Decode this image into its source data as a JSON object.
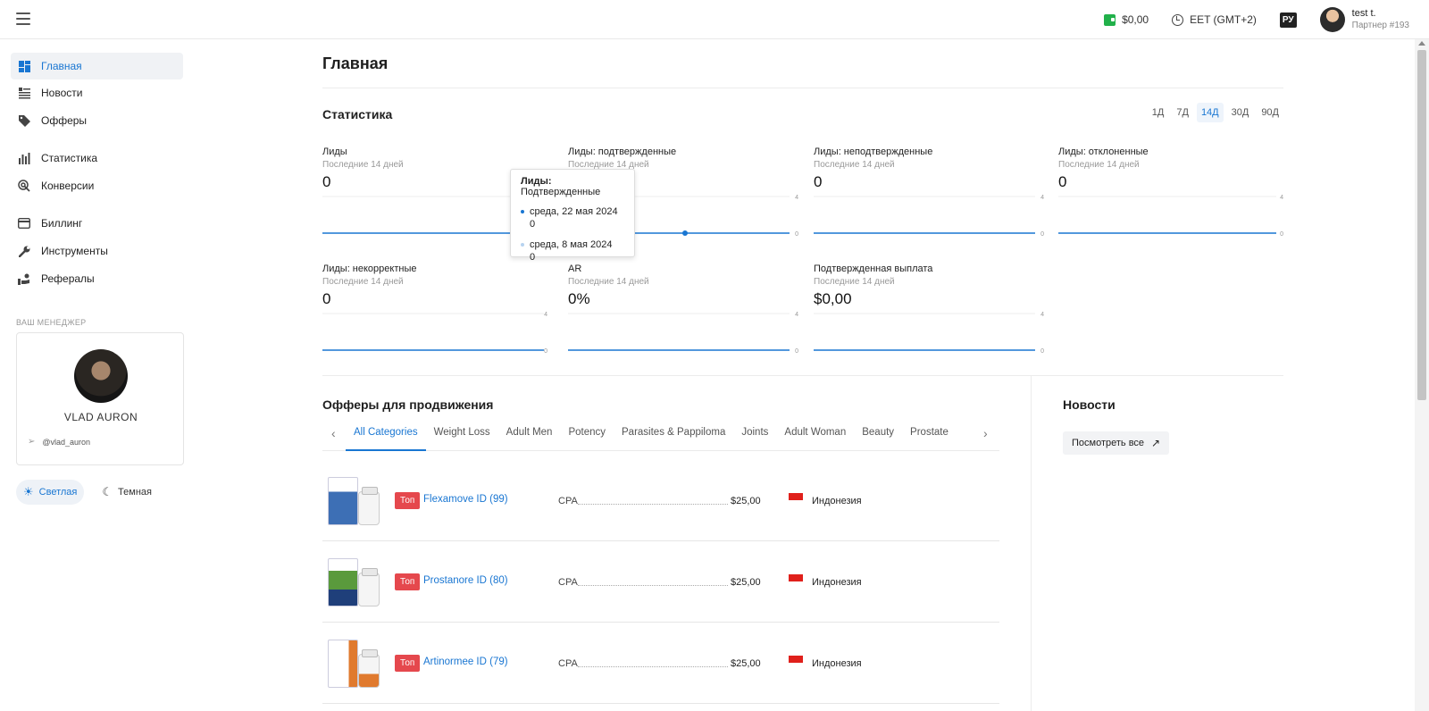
{
  "topbar": {
    "balance": "$0,00",
    "timezone": "EET (GMT+2)",
    "lang": "РУ",
    "user_name": "test t.",
    "user_sub": "Партнер #193"
  },
  "sidebar": {
    "items": [
      {
        "label": "Главная",
        "icon": "dashboard-icon"
      },
      {
        "label": "Новости",
        "icon": "news-icon"
      },
      {
        "label": "Офферы",
        "icon": "tag-icon"
      },
      {
        "label": "Статистика",
        "icon": "bar-chart-icon"
      },
      {
        "label": "Конверсии",
        "icon": "conversion-icon"
      },
      {
        "label": "Биллинг",
        "icon": "credit-card-icon"
      },
      {
        "label": "Инструменты",
        "icon": "wrench-icon"
      },
      {
        "label": "Рефералы",
        "icon": "referral-icon"
      }
    ],
    "manager_label": "ВАШ МЕНЕДЖЕР",
    "manager_name": "VLAD AURON",
    "manager_telegram": "@vlad_auron",
    "theme_light": "Светлая",
    "theme_dark": "Темная"
  },
  "main": {
    "title": "Главная",
    "stats_title": "Статистика",
    "periods": [
      "1Д",
      "7Д",
      "14Д",
      "30Д",
      "90Д"
    ],
    "active_period": "14Д",
    "cards": [
      {
        "title": "Лиды",
        "sub": "Последние 14 дней",
        "value": "0"
      },
      {
        "title": "Лиды: подтвержденные",
        "sub": "Последние 14 дней",
        "value": "0"
      },
      {
        "title": "Лиды: неподтвержденные",
        "sub": "Последние 14 дней",
        "value": "0"
      },
      {
        "title": "Лиды: отклоненные",
        "sub": "Последние 14 дней",
        "value": "0"
      },
      {
        "title": "Лиды: некорректные",
        "sub": "Последние 14 дней",
        "value": "0"
      },
      {
        "title": "AR",
        "sub": "Последние 14 дней",
        "value": "0%"
      },
      {
        "title": "Подтвержденная выплата",
        "sub": "Последние 14 дней",
        "value": "$0,00"
      }
    ],
    "axis_max": "4",
    "axis_min": "0",
    "tooltip": {
      "title_bold": "Лиды:",
      "title_rest": " Подтвержденные",
      "rows": [
        {
          "date": "среда, 22 мая 2024",
          "value": "0",
          "color": "#1976d2"
        },
        {
          "date": "среда, 8 мая 2024",
          "value": "0",
          "color": "#b7d3f0"
        }
      ]
    }
  },
  "offers": {
    "title": "Офферы для продвижения",
    "categories": [
      "All Categories",
      "Weight Loss",
      "Adult Men",
      "Potency",
      "Parasites & Pappiloma",
      "Joints",
      "Adult Woman",
      "Beauty",
      "Prostate"
    ],
    "rows": [
      {
        "badge": "Топ",
        "name": "Flexamove ID (99)",
        "type": "CPA",
        "price": "$25,00",
        "country": "Индонезия",
        "box_color": "#3d6fb5"
      },
      {
        "badge": "Топ",
        "name": "Prostanore ID (80)",
        "type": "CPA",
        "price": "$25,00",
        "country": "Индонезия",
        "box_color": "#5a9a3c"
      },
      {
        "badge": "Топ",
        "name": "Artinormee ID (79)",
        "type": "CPA",
        "price": "$25,00",
        "country": "Индонезия",
        "box_color": "#e07a2e"
      }
    ]
  },
  "news": {
    "title": "Новости",
    "view_all": "Посмотреть все"
  },
  "colors": {
    "accent": "#1976d2",
    "badge": "#e5484d",
    "line": "#1976d2"
  }
}
